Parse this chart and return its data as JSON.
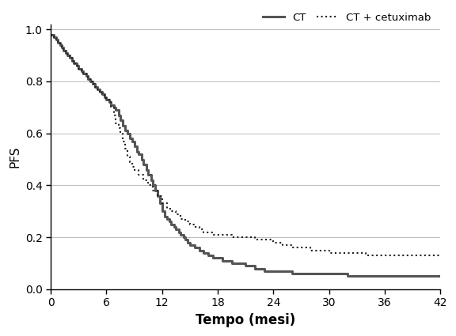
{
  "xlabel": "Tempo (mesi)",
  "ylabel": "PFS",
  "xlim": [
    0,
    42
  ],
  "ylim": [
    0,
    1.02
  ],
  "xticks": [
    0,
    6,
    12,
    18,
    24,
    30,
    36,
    42
  ],
  "yticks": [
    0,
    0.2,
    0.4,
    0.6,
    0.8,
    1.0
  ],
  "xlabel_fontsize": 12,
  "ylabel_fontsize": 11,
  "ct_color": "#555555",
  "ct_cetuximab_color": "#222222",
  "background_color": "#ffffff",
  "legend_labels": [
    "CT",
    "CT + cetuximab"
  ],
  "ct_times": [
    0,
    0.3,
    0.6,
    0.8,
    1.0,
    1.2,
    1.4,
    1.6,
    1.8,
    2.0,
    2.3,
    2.5,
    2.8,
    3.0,
    3.3,
    3.5,
    3.8,
    4.0,
    4.3,
    4.5,
    4.8,
    5.0,
    5.3,
    5.5,
    5.8,
    6.0,
    6.3,
    6.5,
    6.8,
    7.0,
    7.3,
    7.5,
    7.8,
    8.0,
    8.3,
    8.5,
    8.8,
    9.0,
    9.3,
    9.5,
    9.8,
    10.0,
    10.3,
    10.5,
    10.8,
    11.0,
    11.3,
    11.5,
    11.8,
    12.0,
    12.3,
    12.5,
    12.8,
    13.0,
    13.3,
    13.5,
    13.8,
    14.0,
    14.3,
    14.5,
    14.8,
    15.0,
    15.5,
    16.0,
    16.5,
    17.0,
    17.5,
    18.0,
    18.5,
    19.0,
    19.5,
    20.0,
    21.0,
    22.0,
    23.0,
    24.0,
    25.0,
    26.0,
    28.0,
    30.0,
    32.0,
    34.0,
    36.0,
    38.0,
    40.0,
    42.0
  ],
  "ct_surv": [
    0.98,
    0.97,
    0.96,
    0.95,
    0.94,
    0.93,
    0.92,
    0.91,
    0.9,
    0.89,
    0.88,
    0.87,
    0.86,
    0.85,
    0.84,
    0.83,
    0.82,
    0.81,
    0.8,
    0.79,
    0.78,
    0.77,
    0.76,
    0.75,
    0.74,
    0.73,
    0.72,
    0.71,
    0.7,
    0.69,
    0.67,
    0.65,
    0.63,
    0.61,
    0.6,
    0.58,
    0.57,
    0.55,
    0.53,
    0.52,
    0.5,
    0.48,
    0.46,
    0.44,
    0.42,
    0.4,
    0.38,
    0.36,
    0.33,
    0.3,
    0.28,
    0.27,
    0.26,
    0.25,
    0.24,
    0.23,
    0.22,
    0.21,
    0.2,
    0.19,
    0.18,
    0.17,
    0.16,
    0.15,
    0.14,
    0.13,
    0.12,
    0.12,
    0.11,
    0.11,
    0.1,
    0.1,
    0.09,
    0.08,
    0.07,
    0.07,
    0.07,
    0.06,
    0.06,
    0.06,
    0.05,
    0.05,
    0.05,
    0.05,
    0.05,
    0.05
  ],
  "ctc_times": [
    0,
    0.3,
    0.6,
    0.8,
    1.0,
    1.2,
    1.4,
    1.6,
    1.8,
    2.0,
    2.3,
    2.5,
    2.8,
    3.0,
    3.3,
    3.5,
    3.8,
    4.0,
    4.3,
    4.5,
    4.8,
    5.0,
    5.3,
    5.5,
    5.8,
    6.0,
    6.3,
    6.5,
    6.8,
    7.0,
    7.3,
    7.5,
    7.8,
    8.0,
    8.3,
    8.5,
    8.8,
    9.0,
    9.5,
    10.0,
    10.5,
    11.0,
    11.5,
    12.0,
    12.5,
    13.0,
    13.5,
    14.0,
    14.5,
    15.0,
    15.5,
    16.0,
    16.5,
    17.0,
    17.5,
    18.0,
    18.5,
    19.0,
    19.5,
    20.0,
    20.5,
    21.0,
    22.0,
    23.0,
    24.0,
    25.0,
    26.0,
    28.0,
    30.0,
    32.0,
    34.0,
    36.0,
    38.0,
    40.0,
    42.0
  ],
  "ctc_surv": [
    0.98,
    0.97,
    0.96,
    0.95,
    0.94,
    0.93,
    0.92,
    0.91,
    0.9,
    0.89,
    0.88,
    0.87,
    0.86,
    0.85,
    0.84,
    0.83,
    0.82,
    0.81,
    0.8,
    0.79,
    0.78,
    0.77,
    0.76,
    0.75,
    0.74,
    0.73,
    0.72,
    0.7,
    0.67,
    0.64,
    0.62,
    0.6,
    0.57,
    0.54,
    0.51,
    0.49,
    0.47,
    0.46,
    0.44,
    0.42,
    0.4,
    0.38,
    0.36,
    0.33,
    0.31,
    0.3,
    0.29,
    0.27,
    0.26,
    0.25,
    0.24,
    0.23,
    0.22,
    0.22,
    0.21,
    0.21,
    0.21,
    0.21,
    0.2,
    0.2,
    0.2,
    0.2,
    0.19,
    0.19,
    0.18,
    0.17,
    0.16,
    0.15,
    0.14,
    0.14,
    0.13,
    0.13,
    0.13,
    0.13,
    0.13
  ]
}
